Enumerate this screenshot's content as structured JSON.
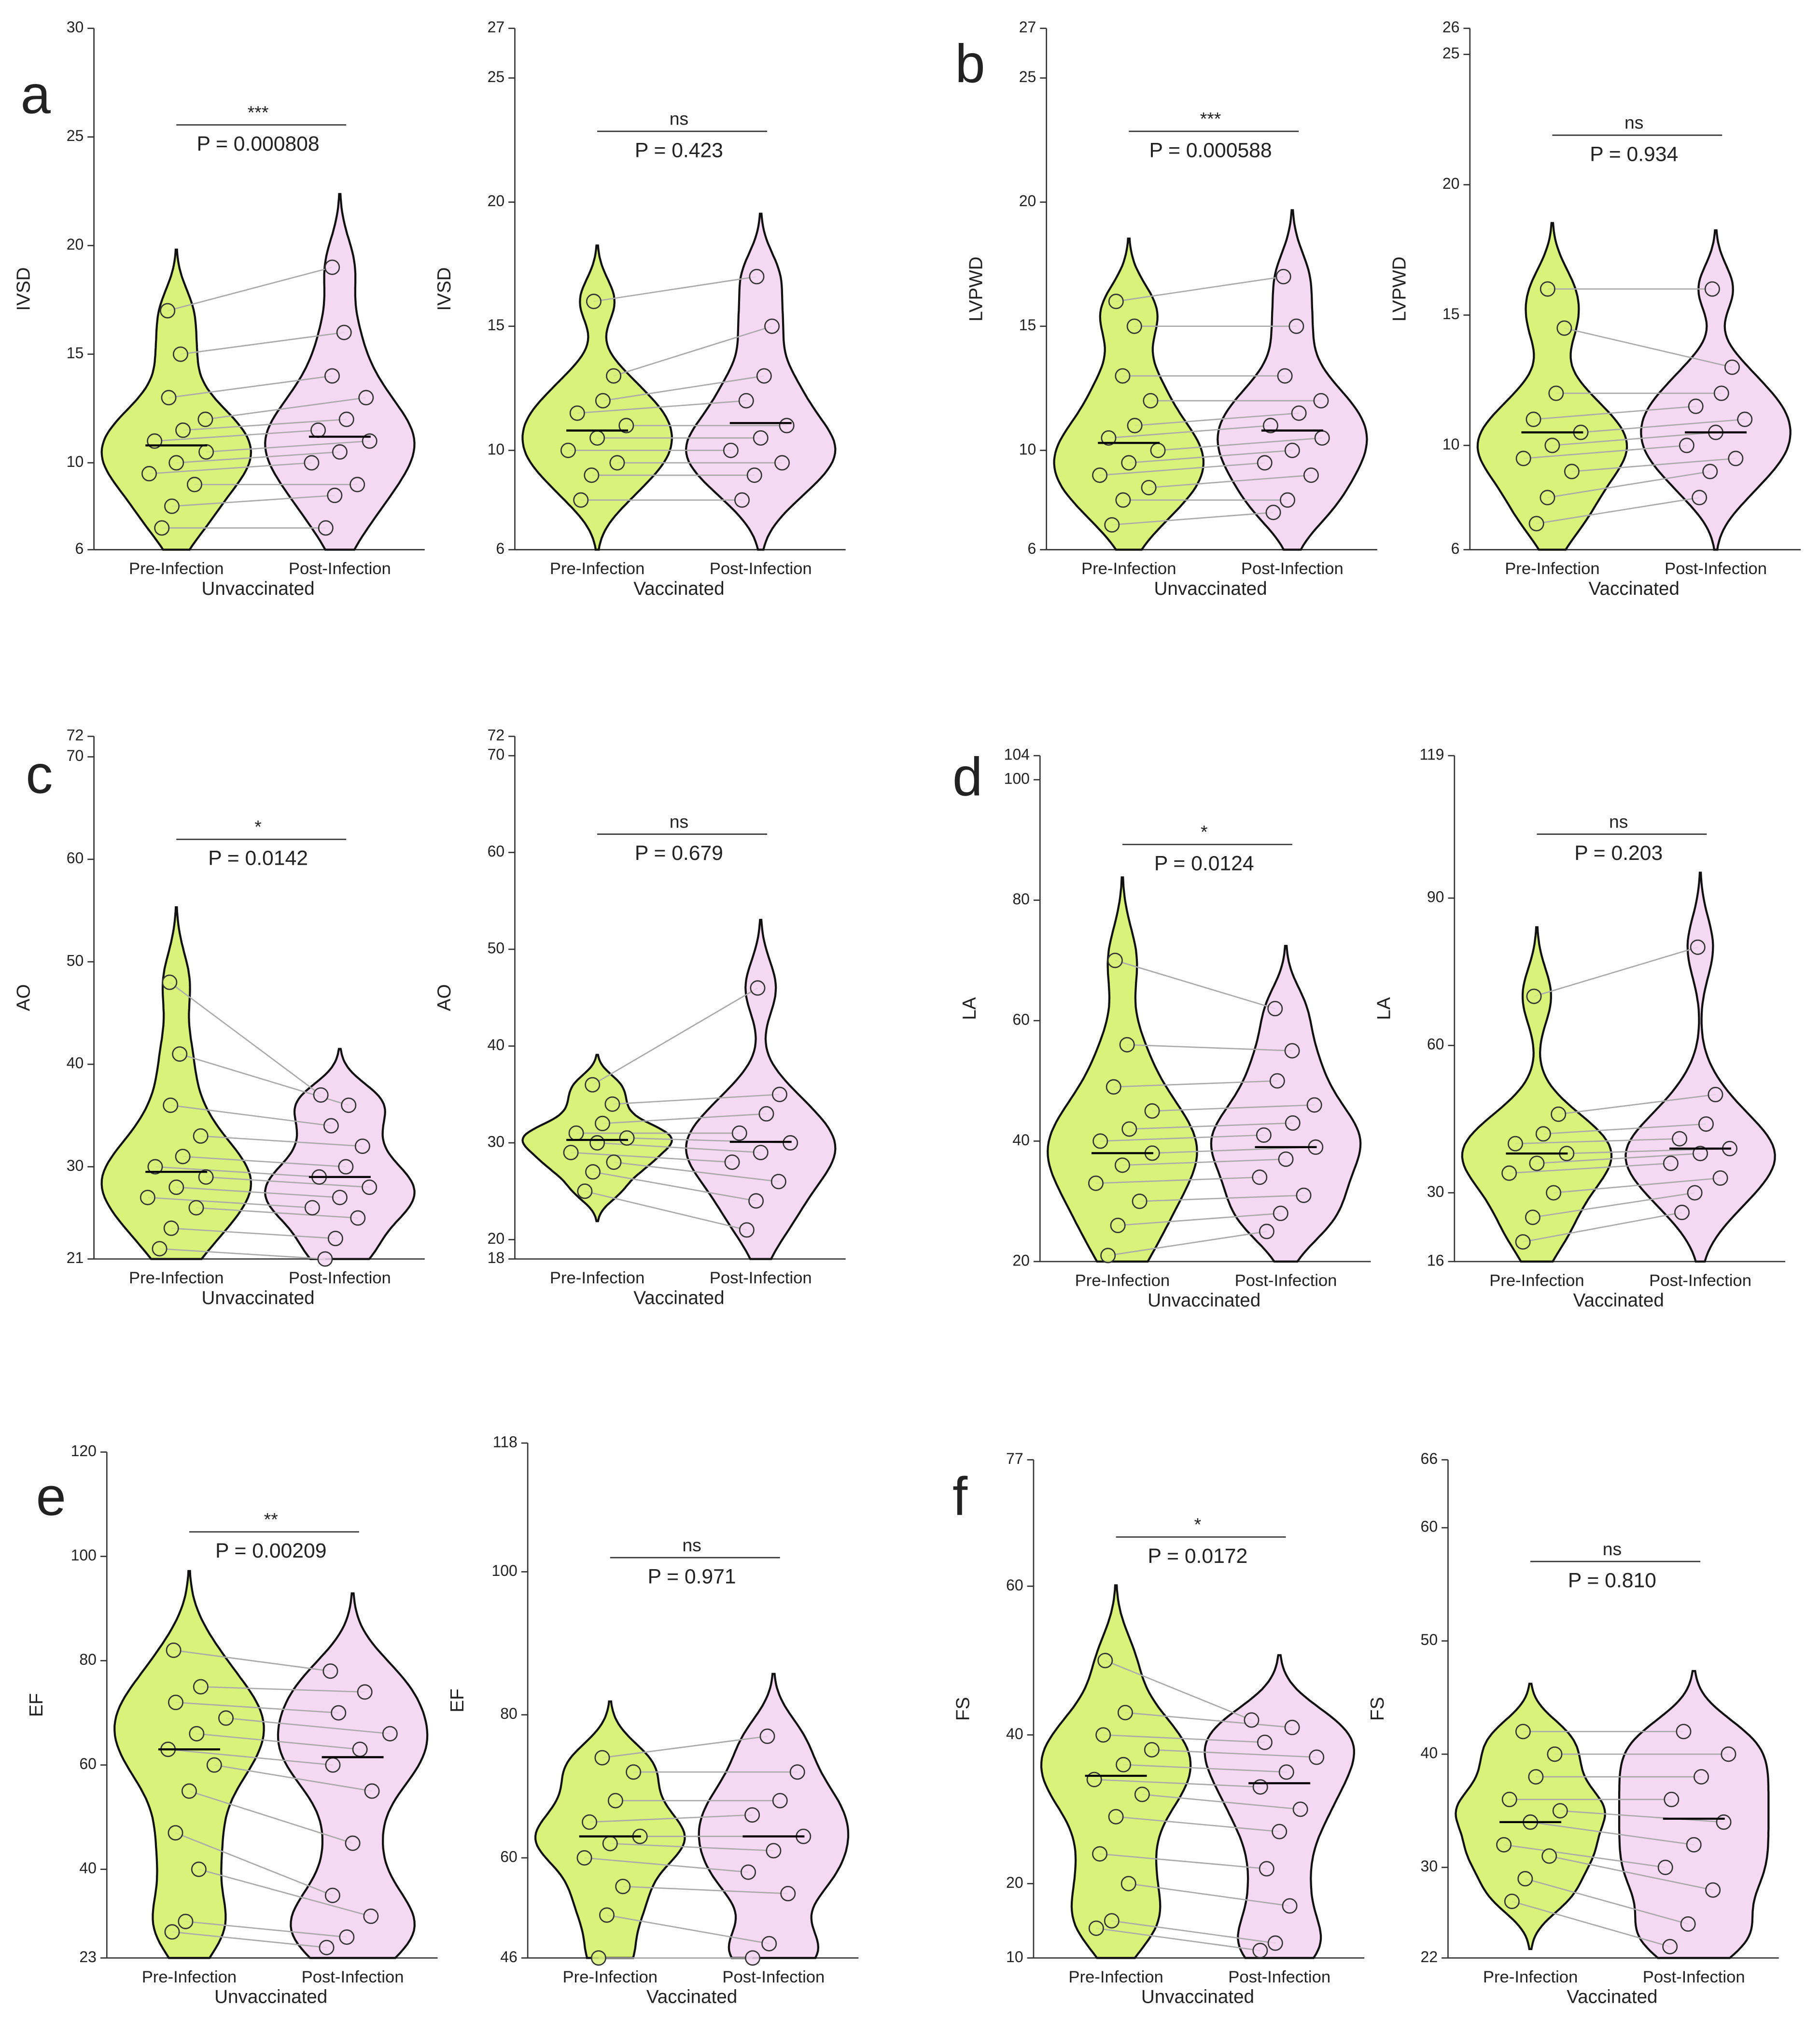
{
  "chart_data": [
    {
      "type": "violin",
      "panel_label": "a",
      "y_label": "IVSD",
      "x_label": "Unvaccinated",
      "categories": [
        "Pre-Infection",
        "Post-Infection"
      ],
      "colors": [
        "#d9f27a",
        "#f5d8f2"
      ],
      "significance": "***",
      "p_label": "P = 0.000808",
      "ylim": [
        6,
        30
      ],
      "yticks": [
        6,
        10,
        15,
        20,
        25,
        30
      ],
      "medians": [
        10.8,
        11.2
      ],
      "points": [
        [
          7,
          8,
          9,
          9.5,
          10,
          10.5,
          11,
          11.5,
          12,
          13,
          15,
          17
        ],
        [
          7,
          8.5,
          9,
          10,
          10.5,
          11,
          11.5,
          12,
          13,
          14,
          16,
          19
        ]
      ]
    },
    {
      "type": "violin",
      "y_label": "IVSD",
      "x_label": "Vaccinated",
      "categories": [
        "Pre-Infection",
        "Post-Infection"
      ],
      "colors": [
        "#d9f27a",
        "#f5d8f2"
      ],
      "significance": "ns",
      "p_label": "P = 0.423",
      "ylim": [
        6,
        27
      ],
      "yticks": [
        6,
        10,
        15,
        20,
        25,
        27
      ],
      "medians": [
        10.8,
        11.1
      ],
      "points": [
        [
          8,
          9,
          9.5,
          10,
          10.5,
          11,
          11.5,
          12,
          13,
          16
        ],
        [
          8,
          9,
          9.5,
          10,
          10.5,
          11,
          12,
          13,
          15,
          17
        ]
      ]
    },
    {
      "type": "violin",
      "panel_label": "b",
      "y_label": "LVPWD",
      "x_label": "Unvaccinated",
      "categories": [
        "Pre-Infection",
        "Post-Infection"
      ],
      "colors": [
        "#d9f27a",
        "#f5d8f2"
      ],
      "significance": "***",
      "p_label": "P = 0.000588",
      "ylim": [
        6,
        27
      ],
      "yticks": [
        6,
        10,
        15,
        20,
        25,
        27
      ],
      "medians": [
        10.3,
        10.8
      ],
      "points": [
        [
          7,
          8,
          8.5,
          9,
          9.5,
          10,
          10.5,
          11,
          12,
          13,
          15,
          16
        ],
        [
          7.5,
          8,
          9,
          9.5,
          10,
          10.5,
          11,
          11.5,
          12,
          13,
          15,
          17
        ]
      ]
    },
    {
      "type": "violin",
      "y_label": "LVPWD",
      "x_label": "Vaccinated",
      "categories": [
        "Pre-Infection",
        "Post-Infection"
      ],
      "colors": [
        "#d9f27a",
        "#f5d8f2"
      ],
      "significance": "ns",
      "p_label": "P = 0.934",
      "ylim": [
        6,
        26
      ],
      "yticks": [
        6,
        10,
        15,
        20,
        25,
        26
      ],
      "medians": [
        10.5,
        10.5
      ],
      "points": [
        [
          7,
          8,
          9,
          9.5,
          10,
          10.5,
          11,
          12,
          14.5,
          16
        ],
        [
          8,
          9,
          9.5,
          10,
          10.5,
          11,
          11.5,
          12,
          13,
          16
        ]
      ]
    },
    {
      "type": "violin",
      "panel_label": "c",
      "y_label": "AO",
      "x_label": "Unvaccinated",
      "categories": [
        "Pre-Infection",
        "Post-Infection"
      ],
      "colors": [
        "#d9f27a",
        "#f5d8f2"
      ],
      "significance": "*",
      "p_label": "P = 0.0142",
      "ylim": [
        21,
        72
      ],
      "yticks": [
        21,
        30,
        40,
        50,
        60,
        70,
        72
      ],
      "medians": [
        29.5,
        29
      ],
      "points": [
        [
          22,
          24,
          26,
          27,
          28,
          29,
          30,
          31,
          33,
          36,
          41,
          48
        ],
        [
          21,
          23,
          25,
          26,
          27,
          28,
          29,
          30,
          32,
          34,
          36,
          37
        ]
      ]
    },
    {
      "type": "violin",
      "y_label": "AO",
      "x_label": "Vaccinated",
      "categories": [
        "Pre-Infection",
        "Post-Infection"
      ],
      "colors": [
        "#d9f27a",
        "#f5d8f2"
      ],
      "significance": "ns",
      "p_label": "P = 0.679",
      "ylim": [
        18,
        72
      ],
      "yticks": [
        18,
        20,
        30,
        40,
        50,
        60,
        70,
        72
      ],
      "medians": [
        30.3,
        30.1
      ],
      "points": [
        [
          25,
          27,
          28,
          29,
          30,
          30.5,
          31,
          32,
          34,
          36
        ],
        [
          21,
          24,
          26,
          28,
          29,
          30,
          31,
          33,
          35,
          46
        ]
      ]
    },
    {
      "type": "violin",
      "panel_label": "d",
      "y_label": "LA",
      "x_label": "Unvaccinated",
      "categories": [
        "Pre-Infection",
        "Post-Infection"
      ],
      "colors": [
        "#d9f27a",
        "#f5d8f2"
      ],
      "significance": "*",
      "p_label": "P = 0.0124",
      "ylim": [
        20,
        104
      ],
      "yticks": [
        20,
        40,
        60,
        80,
        100,
        104
      ],
      "medians": [
        38,
        39
      ],
      "points": [
        [
          21,
          26,
          30,
          33,
          36,
          38,
          40,
          42,
          45,
          49,
          56,
          70
        ],
        [
          25,
          28,
          31,
          34,
          37,
          39,
          41,
          43,
          46,
          50,
          55,
          62
        ]
      ]
    },
    {
      "type": "violin",
      "y_label": "LA",
      "x_label": "Vaccinated",
      "categories": [
        "Pre-Infection",
        "Post-Infection"
      ],
      "colors": [
        "#d9f27a",
        "#f5d8f2"
      ],
      "significance": "ns",
      "p_label": "P = 0.203",
      "ylim": [
        16,
        119
      ],
      "yticks": [
        16,
        30,
        60,
        90,
        119
      ],
      "medians": [
        38,
        39
      ],
      "points": [
        [
          20,
          25,
          30,
          34,
          36,
          38,
          40,
          42,
          46,
          70
        ],
        [
          26,
          30,
          33,
          36,
          38,
          39,
          41,
          44,
          50,
          80
        ]
      ]
    },
    {
      "type": "violin",
      "panel_label": "e",
      "y_label": "EF",
      "x_label": "Unvaccinated",
      "categories": [
        "Pre-Infection",
        "Post-Infection"
      ],
      "colors": [
        "#d9f27a",
        "#f5d8f2"
      ],
      "significance": "**",
      "p_label": "P = 0.00209",
      "ylim": [
        23,
        120
      ],
      "yticks": [
        23,
        40,
        60,
        80,
        100,
        120
      ],
      "medians": [
        63,
        61.5
      ],
      "points": [
        [
          28,
          30,
          40,
          47,
          55,
          60,
          63,
          66,
          69,
          72,
          75,
          82
        ],
        [
          25,
          27,
          31,
          35,
          45,
          55,
          60,
          63,
          66,
          70,
          74,
          78
        ]
      ]
    },
    {
      "type": "violin",
      "y_label": "EF",
      "x_label": "Vaccinated",
      "categories": [
        "Pre-Infection",
        "Post-Infection"
      ],
      "colors": [
        "#d9f27a",
        "#f5d8f2"
      ],
      "significance": "ns",
      "p_label": "P = 0.971",
      "ylim": [
        46,
        118
      ],
      "yticks": [
        46,
        60,
        80,
        100,
        118
      ],
      "medians": [
        63,
        63
      ],
      "points": [
        [
          46,
          52,
          56,
          60,
          62,
          63,
          65,
          68,
          72,
          74
        ],
        [
          46,
          48,
          55,
          58,
          61,
          63,
          66,
          68,
          72,
          77
        ]
      ]
    },
    {
      "type": "violin",
      "panel_label": "f",
      "y_label": "FS",
      "x_label": "Unvaccinated",
      "categories": [
        "Pre-Infection",
        "Post-Infection"
      ],
      "colors": [
        "#d9f27a",
        "#f5d8f2"
      ],
      "significance": "*",
      "p_label": "P = 0.0172",
      "ylim": [
        10,
        77
      ],
      "yticks": [
        10,
        20,
        40,
        60,
        77
      ],
      "medians": [
        34.5,
        33.5
      ],
      "points": [
        [
          14,
          15,
          20,
          24,
          29,
          32,
          34,
          36,
          38,
          40,
          43,
          50
        ],
        [
          11,
          12,
          17,
          22,
          27,
          30,
          33,
          35,
          37,
          39,
          41,
          42
        ]
      ]
    },
    {
      "type": "violin",
      "y_label": "FS",
      "x_label": "Vaccinated",
      "categories": [
        "Pre-Infection",
        "Post-Infection"
      ],
      "colors": [
        "#d9f27a",
        "#f5d8f2"
      ],
      "significance": "ns",
      "p_label": "P = 0.810",
      "ylim": [
        22,
        66
      ],
      "yticks": [
        22,
        30,
        40,
        50,
        60,
        66
      ],
      "medians": [
        34,
        34.3
      ],
      "points": [
        [
          27,
          29,
          31,
          32,
          34,
          35,
          36,
          38,
          40,
          42
        ],
        [
          23,
          25,
          28,
          30,
          32,
          34,
          36,
          38,
          40,
          42
        ]
      ]
    }
  ]
}
